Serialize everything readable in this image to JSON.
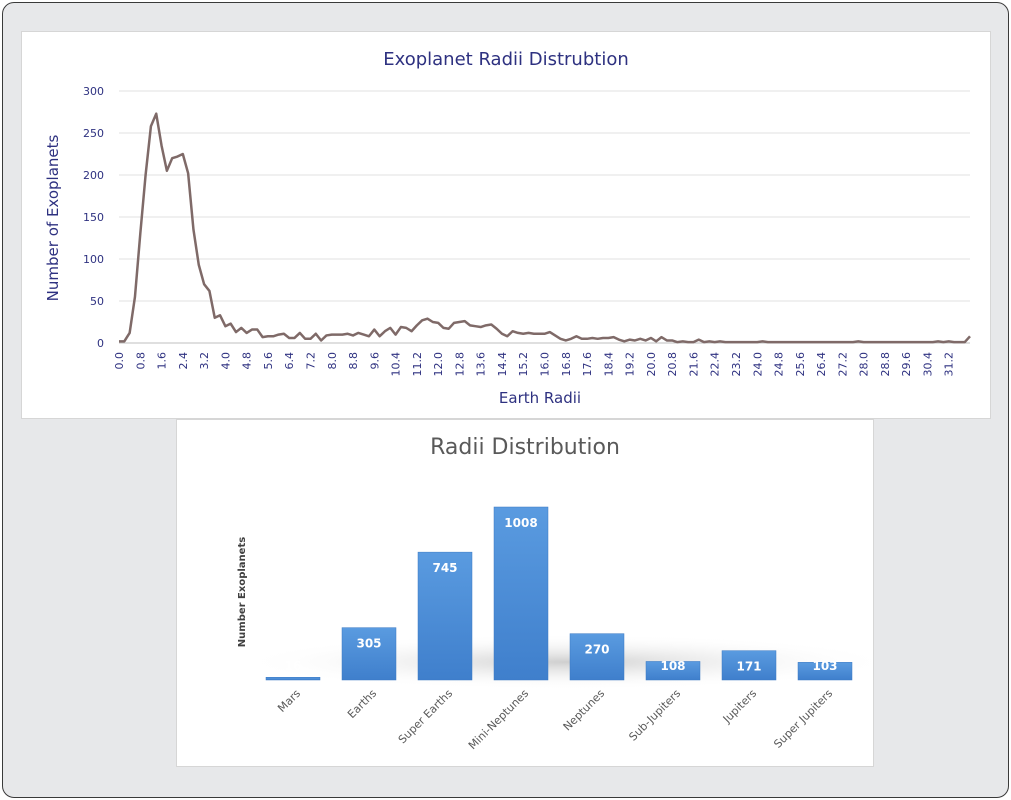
{
  "chart_data": [
    {
      "type": "line",
      "title": "Exoplanet Radii Distrubtion",
      "xlabel": "Earth Radii",
      "ylabel": "Number of Exoplanets",
      "ylim": [
        0,
        300
      ],
      "y_ticks": [
        "0",
        "50",
        "100",
        "150",
        "200",
        "250",
        "300"
      ],
      "x_ticks": [
        "0.0",
        "0.8",
        "1.6",
        "2.4",
        "3.2",
        "4.0",
        "4.8",
        "5.6",
        "6.4",
        "7.2",
        "8.0",
        "8.8",
        "9.6",
        "10.4",
        "11.2",
        "12.0",
        "12.8",
        "13.6",
        "14.4",
        "15.2",
        "16.0",
        "16.8",
        "17.6",
        "18.4",
        "19.2",
        "20.0",
        "20.8",
        "21.6",
        "22.4",
        "23.2",
        "24.0",
        "24.8",
        "25.6",
        "26.4",
        "27.2",
        "28.0",
        "28.8",
        "29.6",
        "30.4",
        "31.2"
      ],
      "x_step": 0.2,
      "grid": true,
      "line_color": "#7f6a68",
      "series": [
        {
          "values": [
            2,
            2,
            12,
            55,
            130,
            200,
            258,
            273,
            235,
            205,
            220,
            222,
            225,
            202,
            135,
            93,
            70,
            62,
            30,
            33,
            20,
            23,
            13,
            18,
            12,
            16,
            16,
            7,
            8,
            8,
            10,
            11,
            6,
            6,
            12,
            5,
            5,
            11,
            3,
            9,
            10,
            10,
            10,
            11,
            9,
            12,
            10,
            8,
            16,
            8,
            14,
            18,
            10,
            19,
            18,
            14,
            21,
            27,
            29,
            25,
            24,
            18,
            17,
            24,
            25,
            26,
            21,
            20,
            19,
            21,
            22,
            17,
            11,
            8,
            14,
            12,
            11,
            12,
            11,
            11,
            11,
            13,
            9,
            5,
            3,
            5,
            8,
            5,
            5,
            6,
            5,
            6,
            6,
            7,
            4,
            2,
            4,
            3,
            5,
            3,
            6,
            2,
            7,
            3,
            3,
            1,
            2,
            1,
            1,
            4,
            1,
            2,
            1,
            2,
            1,
            1,
            1,
            1,
            1,
            1,
            1,
            2,
            1,
            1,
            1,
            1,
            1,
            1,
            1,
            1,
            1,
            1,
            1,
            1,
            1,
            1,
            1,
            1,
            1,
            2,
            1,
            1,
            1,
            1,
            1,
            1,
            1,
            1,
            1,
            1,
            1,
            1,
            1,
            1,
            2,
            1,
            2,
            1,
            1,
            1,
            8
          ]
        }
      ]
    },
    {
      "type": "bar",
      "title": "Radii Distribution",
      "xlabel": "",
      "ylabel": "Number Exoplanets",
      "categories": [
        "Mars",
        "Earths",
        "Super Earths",
        "Mini-Neptunes",
        "Neptunes",
        "Sub-Jupiters",
        "Jupiters",
        "Super Jupiters"
      ],
      "values": [
        16,
        305,
        745,
        1008,
        270,
        108,
        171,
        103
      ],
      "bar_color": "#4a8fd6",
      "ylim": [
        0,
        1100
      ]
    }
  ]
}
